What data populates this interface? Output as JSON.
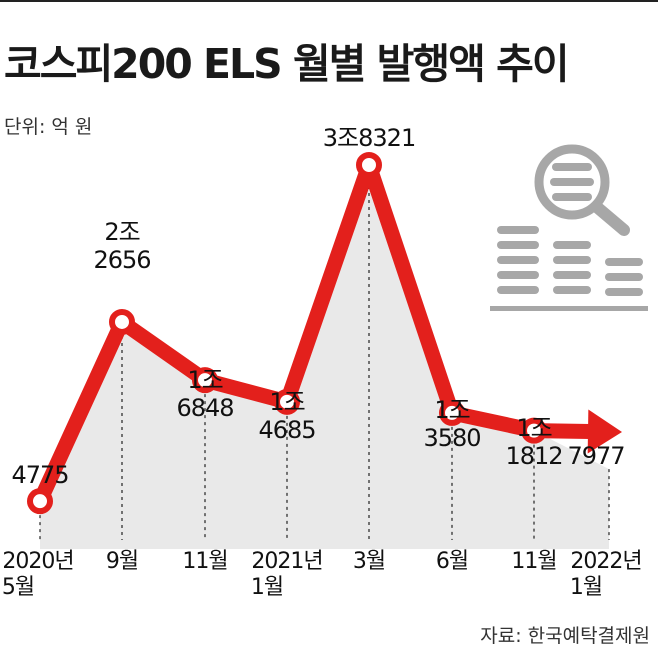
{
  "title": "코스피200 ELS 월별 발행액 추이",
  "unit": "단위: 억 원",
  "source": "자료: 한국예탁결제원",
  "colors": {
    "line": "#e3201c",
    "area": "#e9e9e9",
    "icon": "#a7a7a7"
  },
  "icon": "search-coins-icon",
  "chart_data": {
    "type": "line",
    "categories": [
      [
        "2020년",
        "5월"
      ],
      [
        "9월"
      ],
      [
        "11월"
      ],
      [
        "2021년",
        "1월"
      ],
      [
        "3월"
      ],
      [
        "6월"
      ],
      [
        "11월"
      ],
      [
        "2022년",
        "1월"
      ]
    ],
    "values": [
      4775,
      22656,
      16848,
      14685,
      38321,
      13580,
      11812,
      7977
    ],
    "data_labels": [
      [
        "4775"
      ],
      [
        "2조",
        "2656"
      ],
      [
        "1조",
        "6848"
      ],
      [
        "1조",
        "4685"
      ],
      [
        "3조8321"
      ],
      [
        "1조",
        "3580"
      ],
      [
        "1조",
        "1812"
      ],
      [
        "7977"
      ]
    ]
  }
}
